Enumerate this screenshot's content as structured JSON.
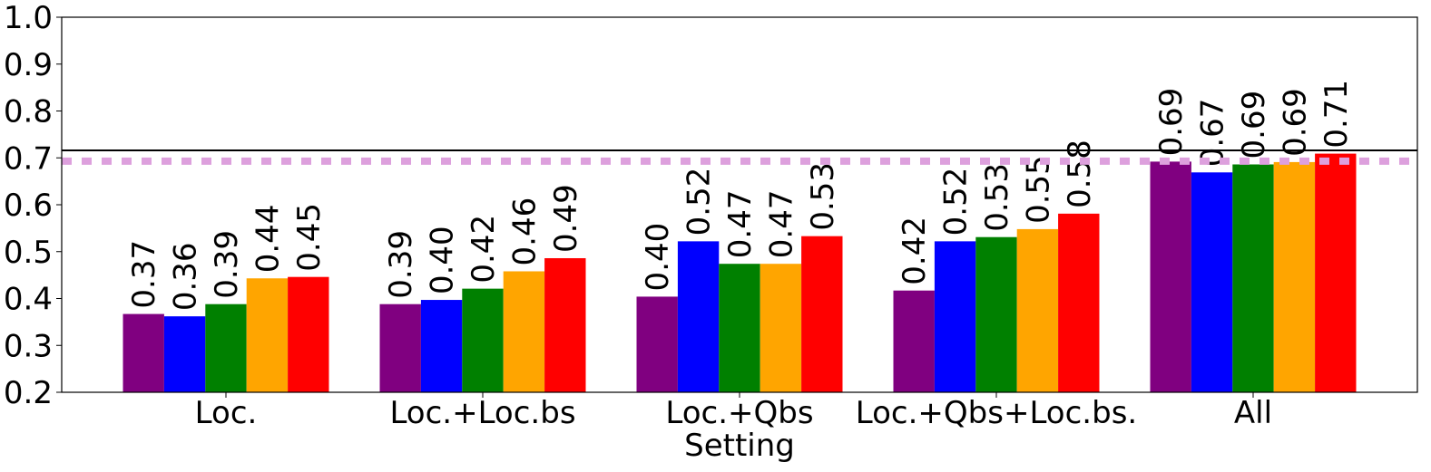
{
  "chart_data": {
    "type": "bar",
    "xlabel": "Setting",
    "categories": [
      "Loc.",
      "Loc.+Loc.bs",
      "Loc.+Qbs",
      "Loc.+Qbs+Loc.bs.",
      "All"
    ],
    "series": [
      {
        "color": "#800080",
        "values": [
          0.367,
          0.388,
          0.404,
          0.417,
          0.692
        ],
        "value_labels": [
          "0.37",
          "0.39",
          "0.40",
          "0.42",
          "0.69"
        ]
      },
      {
        "color": "#0000ff",
        "values": [
          0.362,
          0.397,
          0.522,
          0.522,
          0.669
        ],
        "value_labels": [
          "0.36",
          "0.40",
          "0.52",
          "0.52",
          "0.67"
        ]
      },
      {
        "color": "#008000",
        "values": [
          0.388,
          0.421,
          0.474,
          0.531,
          0.686
        ],
        "value_labels": [
          "0.39",
          "0.42",
          "0.47",
          "0.53",
          "0.69"
        ]
      },
      {
        "color": "#ffa500",
        "values": [
          0.443,
          0.458,
          0.474,
          0.548,
          0.691
        ],
        "value_labels": [
          "0.44",
          "0.46",
          "0.47",
          "0.55",
          "0.69"
        ]
      },
      {
        "color": "#ff0000",
        "values": [
          0.446,
          0.486,
          0.533,
          0.581,
          0.709
        ],
        "value_labels": [
          "0.45",
          "0.49",
          "0.53",
          "0.58",
          "0.71"
        ]
      }
    ],
    "ylim": [
      0.2,
      1.0
    ],
    "yticks": [
      0.2,
      0.3,
      0.4,
      0.5,
      0.6,
      0.7,
      0.8,
      0.9,
      {
        "value": 1.0,
        "label": "1.0"
      }
    ],
    "reference_lines": [
      {
        "value": 0.716,
        "color": "#000000",
        "style": "solid"
      },
      {
        "value": 0.693,
        "color": "#dda0dd",
        "style": "dashed"
      }
    ]
  }
}
